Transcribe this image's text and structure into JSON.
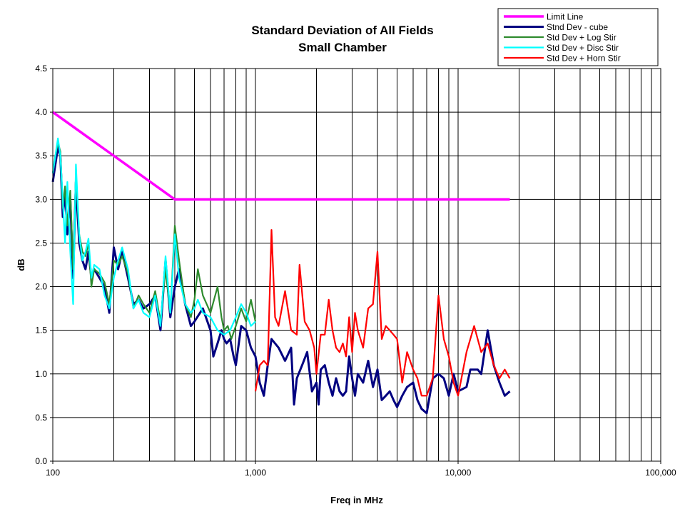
{
  "chart_data": {
    "type": "line",
    "title": "Standard Deviation of All Fields",
    "subtitle": "Small Chamber",
    "xlabel": "Freq in MHz",
    "ylabel": "dB",
    "x_scale": "log",
    "xlim": [
      100,
      100000
    ],
    "ylim": [
      0,
      4.5
    ],
    "x_ticks": [
      100,
      1000,
      10000,
      100000
    ],
    "x_tick_labels": [
      "100",
      "1,000",
      "10,000",
      "100,000"
    ],
    "y_ticks": [
      0,
      0.5,
      1,
      1.5,
      2,
      2.5,
      3,
      3.5,
      4,
      4.5
    ],
    "y_tick_labels": [
      "0.0",
      "0.5",
      "1.0",
      "1.5",
      "2.0",
      "2.5",
      "3.0",
      "3.5",
      "4.0",
      "4.5"
    ],
    "grid": true,
    "legend_position": "top-right",
    "series": [
      {
        "name": "Limit Line",
        "color": "#ff00ff",
        "points": [
          [
            100,
            4.0
          ],
          [
            400,
            3.0
          ],
          [
            18000,
            3.0
          ]
        ]
      },
      {
        "name": "Stnd Dev - cube",
        "color": "#000080",
        "points": [
          [
            100,
            3.2
          ],
          [
            103,
            3.4
          ],
          [
            106,
            3.6
          ],
          [
            109,
            3.5
          ],
          [
            112,
            2.8
          ],
          [
            115,
            3.1
          ],
          [
            118,
            2.6
          ],
          [
            122,
            3.0
          ],
          [
            126,
            2.1
          ],
          [
            130,
            3.2
          ],
          [
            135,
            2.5
          ],
          [
            140,
            2.3
          ],
          [
            145,
            2.2
          ],
          [
            150,
            2.4
          ],
          [
            155,
            2.1
          ],
          [
            160,
            2.2
          ],
          [
            170,
            2.1
          ],
          [
            180,
            2.0
          ],
          [
            190,
            1.7
          ],
          [
            200,
            2.45
          ],
          [
            210,
            2.2
          ],
          [
            220,
            2.4
          ],
          [
            235,
            2.1
          ],
          [
            250,
            1.8
          ],
          [
            265,
            1.85
          ],
          [
            280,
            1.75
          ],
          [
            300,
            1.8
          ],
          [
            320,
            1.9
          ],
          [
            340,
            1.5
          ],
          [
            360,
            2.3
          ],
          [
            380,
            1.65
          ],
          [
            400,
            2.0
          ],
          [
            420,
            2.2
          ],
          [
            450,
            1.8
          ],
          [
            480,
            1.55
          ],
          [
            500,
            1.6
          ],
          [
            550,
            1.75
          ],
          [
            600,
            1.5
          ],
          [
            620,
            1.2
          ],
          [
            650,
            1.35
          ],
          [
            680,
            1.5
          ],
          [
            700,
            1.4
          ],
          [
            720,
            1.35
          ],
          [
            750,
            1.4
          ],
          [
            780,
            1.2
          ],
          [
            800,
            1.1
          ],
          [
            850,
            1.55
          ],
          [
            900,
            1.5
          ],
          [
            950,
            1.3
          ],
          [
            1000,
            1.2
          ],
          [
            1050,
            0.9
          ],
          [
            1100,
            0.75
          ],
          [
            1150,
            1.1
          ],
          [
            1200,
            1.4
          ],
          [
            1300,
            1.3
          ],
          [
            1400,
            1.15
          ],
          [
            1500,
            1.3
          ],
          [
            1550,
            0.65
          ],
          [
            1600,
            0.95
          ],
          [
            1700,
            1.1
          ],
          [
            1800,
            1.25
          ],
          [
            1900,
            0.8
          ],
          [
            2000,
            0.9
          ],
          [
            2050,
            0.65
          ],
          [
            2100,
            1.05
          ],
          [
            2200,
            1.1
          ],
          [
            2300,
            0.9
          ],
          [
            2400,
            0.75
          ],
          [
            2500,
            0.95
          ],
          [
            2600,
            0.8
          ],
          [
            2700,
            0.75
          ],
          [
            2800,
            0.8
          ],
          [
            2900,
            1.2
          ],
          [
            3000,
            0.95
          ],
          [
            3100,
            0.75
          ],
          [
            3200,
            1.0
          ],
          [
            3400,
            0.9
          ],
          [
            3600,
            1.15
          ],
          [
            3800,
            0.85
          ],
          [
            4000,
            1.05
          ],
          [
            4200,
            0.7
          ],
          [
            4400,
            0.75
          ],
          [
            4600,
            0.8
          ],
          [
            4800,
            0.7
          ],
          [
            5000,
            0.62
          ],
          [
            5300,
            0.75
          ],
          [
            5600,
            0.85
          ],
          [
            6000,
            0.9
          ],
          [
            6300,
            0.7
          ],
          [
            6600,
            0.6
          ],
          [
            7000,
            0.55
          ],
          [
            7500,
            0.95
          ],
          [
            8000,
            1.0
          ],
          [
            8500,
            0.95
          ],
          [
            9000,
            0.75
          ],
          [
            9500,
            1.0
          ],
          [
            10000,
            0.8
          ],
          [
            11000,
            0.85
          ],
          [
            11500,
            1.05
          ],
          [
            12500,
            1.05
          ],
          [
            13000,
            1.0
          ],
          [
            14000,
            1.5
          ],
          [
            15000,
            1.1
          ],
          [
            16000,
            0.9
          ],
          [
            17000,
            0.75
          ],
          [
            18000,
            0.8
          ]
        ]
      },
      {
        "name": "Std Dev + Log Stir",
        "color": "#2e8b2e",
        "points": [
          [
            100,
            3.3
          ],
          [
            103,
            3.5
          ],
          [
            106,
            3.65
          ],
          [
            109,
            3.55
          ],
          [
            112,
            2.9
          ],
          [
            115,
            3.15
          ],
          [
            118,
            2.7
          ],
          [
            122,
            3.1
          ],
          [
            126,
            2.2
          ],
          [
            130,
            3.3
          ],
          [
            135,
            2.6
          ],
          [
            140,
            2.4
          ],
          [
            145,
            2.35
          ],
          [
            150,
            2.5
          ],
          [
            155,
            2.0
          ],
          [
            160,
            2.2
          ],
          [
            170,
            2.15
          ],
          [
            180,
            2.05
          ],
          [
            190,
            1.8
          ],
          [
            200,
            2.3
          ],
          [
            210,
            2.25
          ],
          [
            220,
            2.35
          ],
          [
            235,
            2.15
          ],
          [
            250,
            1.75
          ],
          [
            265,
            1.9
          ],
          [
            280,
            1.8
          ],
          [
            300,
            1.7
          ],
          [
            320,
            1.95
          ],
          [
            340,
            1.6
          ],
          [
            360,
            2.2
          ],
          [
            380,
            1.7
          ],
          [
            400,
            2.7
          ],
          [
            420,
            2.3
          ],
          [
            450,
            1.8
          ],
          [
            480,
            1.65
          ],
          [
            500,
            1.85
          ],
          [
            520,
            2.2
          ],
          [
            550,
            1.9
          ],
          [
            600,
            1.7
          ],
          [
            650,
            2.0
          ],
          [
            680,
            1.65
          ],
          [
            700,
            1.5
          ],
          [
            730,
            1.55
          ],
          [
            760,
            1.4
          ],
          [
            800,
            1.55
          ],
          [
            850,
            1.75
          ],
          [
            900,
            1.6
          ],
          [
            950,
            1.85
          ],
          [
            1000,
            1.6
          ]
        ]
      },
      {
        "name": "Std Dev + Disc Stir",
        "color": "#00ffff",
        "points": [
          [
            100,
            3.3
          ],
          [
            103,
            3.5
          ],
          [
            106,
            3.7
          ],
          [
            109,
            3.5
          ],
          [
            112,
            3.0
          ],
          [
            115,
            2.5
          ],
          [
            118,
            3.2
          ],
          [
            122,
            2.4
          ],
          [
            126,
            1.8
          ],
          [
            130,
            3.4
          ],
          [
            135,
            2.6
          ],
          [
            140,
            2.3
          ],
          [
            145,
            2.4
          ],
          [
            150,
            2.55
          ],
          [
            155,
            2.1
          ],
          [
            160,
            2.25
          ],
          [
            170,
            2.2
          ],
          [
            180,
            1.9
          ],
          [
            190,
            1.75
          ],
          [
            200,
            2.1
          ],
          [
            210,
            2.3
          ],
          [
            220,
            2.45
          ],
          [
            235,
            2.2
          ],
          [
            250,
            1.75
          ],
          [
            265,
            1.85
          ],
          [
            280,
            1.7
          ],
          [
            300,
            1.65
          ],
          [
            320,
            1.9
          ],
          [
            340,
            1.55
          ],
          [
            360,
            2.35
          ],
          [
            380,
            1.7
          ],
          [
            400,
            2.6
          ],
          [
            420,
            2.1
          ],
          [
            450,
            1.8
          ],
          [
            480,
            1.7
          ],
          [
            500,
            1.75
          ],
          [
            520,
            1.85
          ],
          [
            550,
            1.7
          ],
          [
            600,
            1.65
          ],
          [
            650,
            1.5
          ],
          [
            700,
            1.45
          ],
          [
            750,
            1.5
          ],
          [
            800,
            1.65
          ],
          [
            850,
            1.8
          ],
          [
            900,
            1.7
          ],
          [
            950,
            1.55
          ],
          [
            1000,
            1.6
          ]
        ]
      },
      {
        "name": "Std Dev + Horn Stir",
        "color": "#ff0000",
        "points": [
          [
            1000,
            0.8
          ],
          [
            1050,
            1.1
          ],
          [
            1100,
            1.15
          ],
          [
            1150,
            1.1
          ],
          [
            1200,
            2.65
          ],
          [
            1250,
            1.65
          ],
          [
            1300,
            1.55
          ],
          [
            1400,
            1.95
          ],
          [
            1500,
            1.5
          ],
          [
            1600,
            1.45
          ],
          [
            1650,
            2.25
          ],
          [
            1750,
            1.6
          ],
          [
            1850,
            1.5
          ],
          [
            1950,
            1.3
          ],
          [
            2000,
            1.0
          ],
          [
            2100,
            1.45
          ],
          [
            2200,
            1.45
          ],
          [
            2300,
            1.85
          ],
          [
            2400,
            1.5
          ],
          [
            2500,
            1.3
          ],
          [
            2600,
            1.25
          ],
          [
            2700,
            1.35
          ],
          [
            2800,
            1.2
          ],
          [
            2900,
            1.65
          ],
          [
            3000,
            1.25
          ],
          [
            3100,
            1.7
          ],
          [
            3200,
            1.5
          ],
          [
            3400,
            1.3
          ],
          [
            3600,
            1.75
          ],
          [
            3800,
            1.8
          ],
          [
            4000,
            2.4
          ],
          [
            4200,
            1.4
          ],
          [
            4400,
            1.55
          ],
          [
            4600,
            1.5
          ],
          [
            4800,
            1.45
          ],
          [
            5000,
            1.4
          ],
          [
            5300,
            0.9
          ],
          [
            5600,
            1.25
          ],
          [
            6000,
            1.05
          ],
          [
            6300,
            0.95
          ],
          [
            6600,
            0.75
          ],
          [
            7000,
            0.75
          ],
          [
            7500,
            0.95
          ],
          [
            8000,
            1.9
          ],
          [
            8500,
            1.4
          ],
          [
            9000,
            1.2
          ],
          [
            9500,
            0.9
          ],
          [
            10000,
            0.75
          ],
          [
            11000,
            1.25
          ],
          [
            12000,
            1.55
          ],
          [
            13000,
            1.25
          ],
          [
            14000,
            1.35
          ],
          [
            15000,
            1.1
          ],
          [
            16000,
            0.95
          ],
          [
            17000,
            1.05
          ],
          [
            18000,
            0.95
          ]
        ]
      }
    ]
  }
}
